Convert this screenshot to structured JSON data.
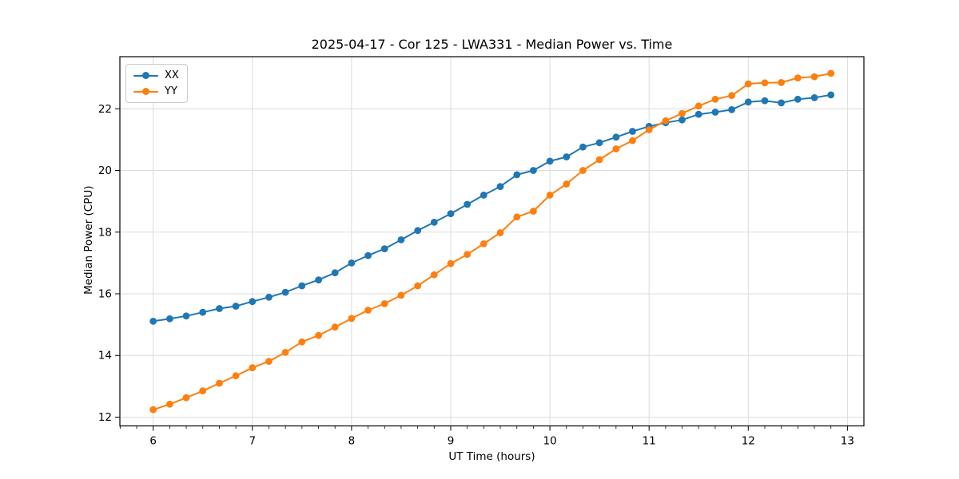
{
  "chart_data": {
    "type": "line",
    "title": "2025-04-17 - Cor 125 - LWA331 - Median Power vs. Time",
    "xlabel": "UT Time (hours)",
    "ylabel": "Median Power (CPU)",
    "xlim": [
      5.664,
      13.166
    ],
    "ylim": [
      11.715,
      23.69
    ],
    "x_major_ticks": [
      6,
      7,
      8,
      9,
      10,
      11,
      12,
      13
    ],
    "x_minor_ticks_per_hour": 6,
    "y_major_ticks": [
      12,
      14,
      16,
      18,
      20,
      22
    ],
    "grid": true,
    "grid_color": "#dcdcdc",
    "spine_color": "#000000",
    "tick_color": "#000000",
    "background_color": "#ffffff",
    "legend_position": "upper-left",
    "marker": "circle",
    "x": [
      6.0,
      6.167,
      6.333,
      6.5,
      6.667,
      6.833,
      7.0,
      7.167,
      7.333,
      7.5,
      7.667,
      7.833,
      8.0,
      8.167,
      8.333,
      8.5,
      8.667,
      8.833,
      9.0,
      9.167,
      9.333,
      9.5,
      9.667,
      9.833,
      10.0,
      10.167,
      10.333,
      10.5,
      10.667,
      10.833,
      11.0,
      11.167,
      11.333,
      11.5,
      11.667,
      11.833,
      12.0,
      12.167,
      12.333,
      12.5,
      12.667,
      12.833
    ],
    "series": [
      {
        "name": "XX",
        "color": "#1f77b4",
        "values": [
          15.11,
          15.19,
          15.28,
          15.4,
          15.52,
          15.6,
          15.75,
          15.89,
          16.05,
          16.26,
          16.45,
          16.68,
          17.0,
          17.24,
          17.46,
          17.75,
          18.05,
          18.32,
          18.6,
          18.9,
          19.2,
          19.48,
          19.86,
          20.0,
          20.3,
          20.44,
          20.76,
          20.9,
          21.08,
          21.27,
          21.43,
          21.55,
          21.64,
          21.82,
          21.89,
          21.97,
          22.22,
          22.26,
          22.19,
          22.31,
          22.36,
          22.45
        ]
      },
      {
        "name": "YY",
        "color": "#ff7f0e",
        "values": [
          12.24,
          12.42,
          12.63,
          12.85,
          13.1,
          13.34,
          13.6,
          13.81,
          14.1,
          14.44,
          14.65,
          14.92,
          15.2,
          15.47,
          15.68,
          15.95,
          16.26,
          16.62,
          16.98,
          17.28,
          17.62,
          17.98,
          18.49,
          18.68,
          19.2,
          19.56,
          20.0,
          20.35,
          20.7,
          20.97,
          21.32,
          21.61,
          21.85,
          22.09,
          22.31,
          22.43,
          22.81,
          22.84,
          22.85,
          23.0,
          23.04,
          23.15
        ]
      }
    ]
  }
}
